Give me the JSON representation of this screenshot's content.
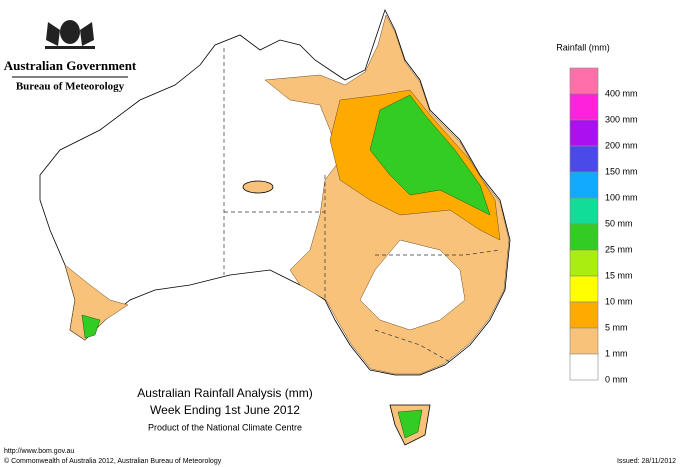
{
  "header": {
    "government": "Australian Government",
    "agency": "Bureau of Meteorology"
  },
  "legend": {
    "title": "Rainfall (mm)",
    "entries": [
      {
        "label": "400 mm",
        "color": "#ff6fa8"
      },
      {
        "label": "300 mm",
        "color": "#ff22dd"
      },
      {
        "label": "200 mm",
        "color": "#aa11ee"
      },
      {
        "label": "150 mm",
        "color": "#4a4ae8"
      },
      {
        "label": "100 mm",
        "color": "#11aaff"
      },
      {
        "label": "50 mm",
        "color": "#11dd99"
      },
      {
        "label": "25 mm",
        "color": "#33cc22"
      },
      {
        "label": "15 mm",
        "color": "#aaee11"
      },
      {
        "label": "10 mm",
        "color": "#ffff00"
      },
      {
        "label": "5 mm",
        "color": "#ffaa00"
      },
      {
        "label": "1 mm",
        "color": "#f9c27a"
      },
      {
        "label": "0 mm",
        "color": "#ffffff"
      }
    ]
  },
  "caption": {
    "title": "Australian Rainfall Analysis (mm)",
    "period": "Week Ending 1st June 2012",
    "product": "Product of the National Climate Centre"
  },
  "footer": {
    "url": "http://www.bom.gov.au",
    "copyright": "© Commonwealth of Australia 2012, Australian Bureau of Meteorology",
    "issued": "Issued: 28/11/2012"
  }
}
